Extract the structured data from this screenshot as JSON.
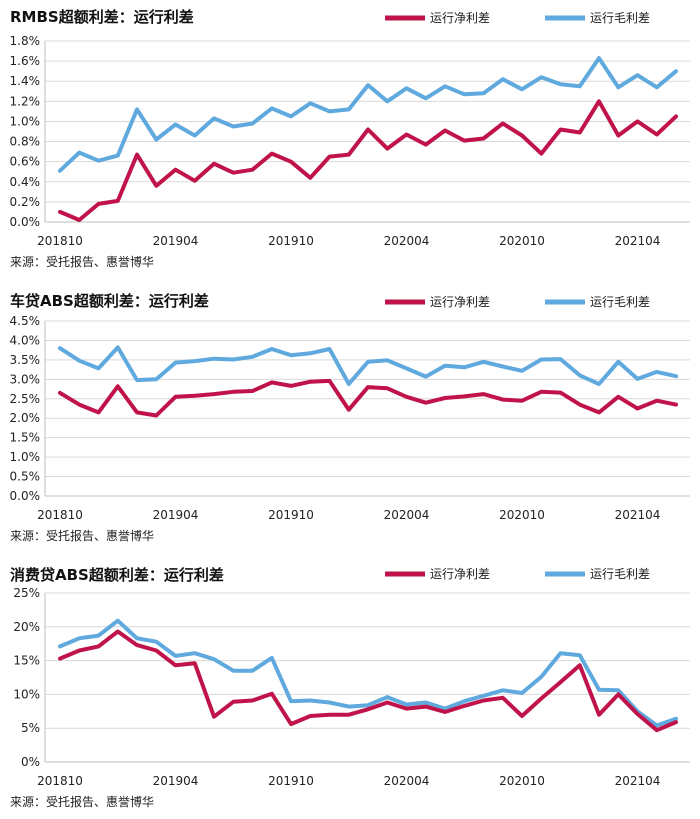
{
  "colors": {
    "net": "#c0134a",
    "gross": "#5fa9df"
  },
  "legend": {
    "net": "运行净利差",
    "gross": "运行毛利差"
  },
  "chart_data": [
    {
      "type": "line",
      "title": "RMBS超额利差：运行利差",
      "source": "来源：受托报告、惠誉博华",
      "xtick_labels": [
        "201810",
        "201904",
        "201910",
        "202004",
        "202010",
        "202104"
      ],
      "ylim": [
        0,
        1.8
      ],
      "yticks": [
        "0.0%",
        "0.2%",
        "0.4%",
        "0.6%",
        "0.8%",
        "1.0%",
        "1.2%",
        "1.4%",
        "1.6%",
        "1.8%"
      ],
      "legend_position": "top-right",
      "grid": true,
      "series": [
        {
          "name": "运行净利差",
          "color": "#c0134a",
          "values": [
            0.1,
            0.02,
            0.18,
            0.21,
            0.67,
            0.36,
            0.52,
            0.41,
            0.58,
            0.49,
            0.52,
            0.68,
            0.6,
            0.44,
            0.65,
            0.67,
            0.92,
            0.73,
            0.87,
            0.77,
            0.91,
            0.81,
            0.83,
            0.98,
            0.86,
            0.68,
            0.92,
            0.89,
            1.2,
            0.86,
            1.0,
            0.87,
            1.05
          ]
        },
        {
          "name": "运行毛利差",
          "color": "#5fa9df",
          "values": [
            0.51,
            0.69,
            0.61,
            0.66,
            1.12,
            0.82,
            0.97,
            0.86,
            1.03,
            0.95,
            0.98,
            1.13,
            1.05,
            1.18,
            1.1,
            1.12,
            1.36,
            1.2,
            1.33,
            1.23,
            1.35,
            1.27,
            1.28,
            1.42,
            1.32,
            1.44,
            1.37,
            1.35,
            1.63,
            1.34,
            1.46,
            1.34,
            1.5
          ]
        }
      ]
    },
    {
      "type": "line",
      "title": "车贷ABS超额利差：运行利差",
      "source": "来源：受托报告、惠誉博华",
      "xtick_labels": [
        "201810",
        "201904",
        "201910",
        "202004",
        "202010",
        "202104"
      ],
      "ylim": [
        0,
        4.5
      ],
      "yticks": [
        "0.0%",
        "0.5%",
        "1.0%",
        "1.5%",
        "2.0%",
        "2.5%",
        "3.0%",
        "3.5%",
        "4.0%",
        "4.5%"
      ],
      "legend_position": "top-right",
      "grid": true,
      "series": [
        {
          "name": "运行净利差",
          "color": "#c0134a",
          "values": [
            2.65,
            2.35,
            2.15,
            2.82,
            2.15,
            2.07,
            2.55,
            2.58,
            2.62,
            2.68,
            2.7,
            2.92,
            2.83,
            2.94,
            2.96,
            2.22,
            2.8,
            2.77,
            2.55,
            2.4,
            2.52,
            2.56,
            2.62,
            2.48,
            2.45,
            2.68,
            2.66,
            2.35,
            2.15,
            2.55,
            2.25,
            2.45,
            2.35
          ]
        },
        {
          "name": "运行毛利差",
          "color": "#5fa9df",
          "values": [
            3.8,
            3.48,
            3.28,
            3.82,
            2.98,
            3.0,
            3.43,
            3.47,
            3.53,
            3.51,
            3.58,
            3.78,
            3.62,
            3.67,
            3.78,
            2.88,
            3.45,
            3.49,
            3.28,
            3.07,
            3.35,
            3.31,
            3.45,
            3.33,
            3.22,
            3.51,
            3.52,
            3.1,
            2.88,
            3.45,
            3.01,
            3.19,
            3.08
          ]
        }
      ]
    },
    {
      "type": "line",
      "title": "消费贷ABS超额利差：运行利差",
      "source": "来源：受托报告、惠誉博华",
      "xtick_labels": [
        "201810",
        "201904",
        "201910",
        "202004",
        "202010",
        "202104"
      ],
      "ylim": [
        0,
        25
      ],
      "yticks": [
        "0%",
        "5%",
        "10%",
        "15%",
        "20%",
        "25%"
      ],
      "legend_position": "top-right",
      "grid": true,
      "series": [
        {
          "name": "运行净利差",
          "color": "#c0134a",
          "values": [
            15.3,
            16.5,
            17.1,
            19.3,
            17.3,
            16.5,
            14.3,
            14.6,
            6.7,
            8.9,
            9.1,
            10.1,
            5.6,
            6.8,
            7.0,
            7.0,
            7.8,
            8.8,
            7.9,
            8.2,
            7.4,
            8.3,
            9.1,
            9.5,
            6.8,
            9.4,
            11.8,
            14.3,
            7.0,
            10.0,
            7.1,
            4.7,
            5.9
          ]
        },
        {
          "name": "运行毛利差",
          "color": "#5fa9df",
          "values": [
            17.1,
            18.3,
            18.7,
            20.9,
            18.3,
            17.8,
            15.7,
            16.1,
            15.2,
            13.5,
            13.5,
            15.4,
            9.0,
            9.1,
            8.8,
            8.2,
            8.4,
            9.6,
            8.5,
            8.8,
            7.9,
            9.0,
            9.8,
            10.6,
            10.2,
            12.6,
            16.1,
            15.8,
            10.7,
            10.6,
            7.5,
            5.4,
            6.4
          ]
        }
      ]
    }
  ]
}
